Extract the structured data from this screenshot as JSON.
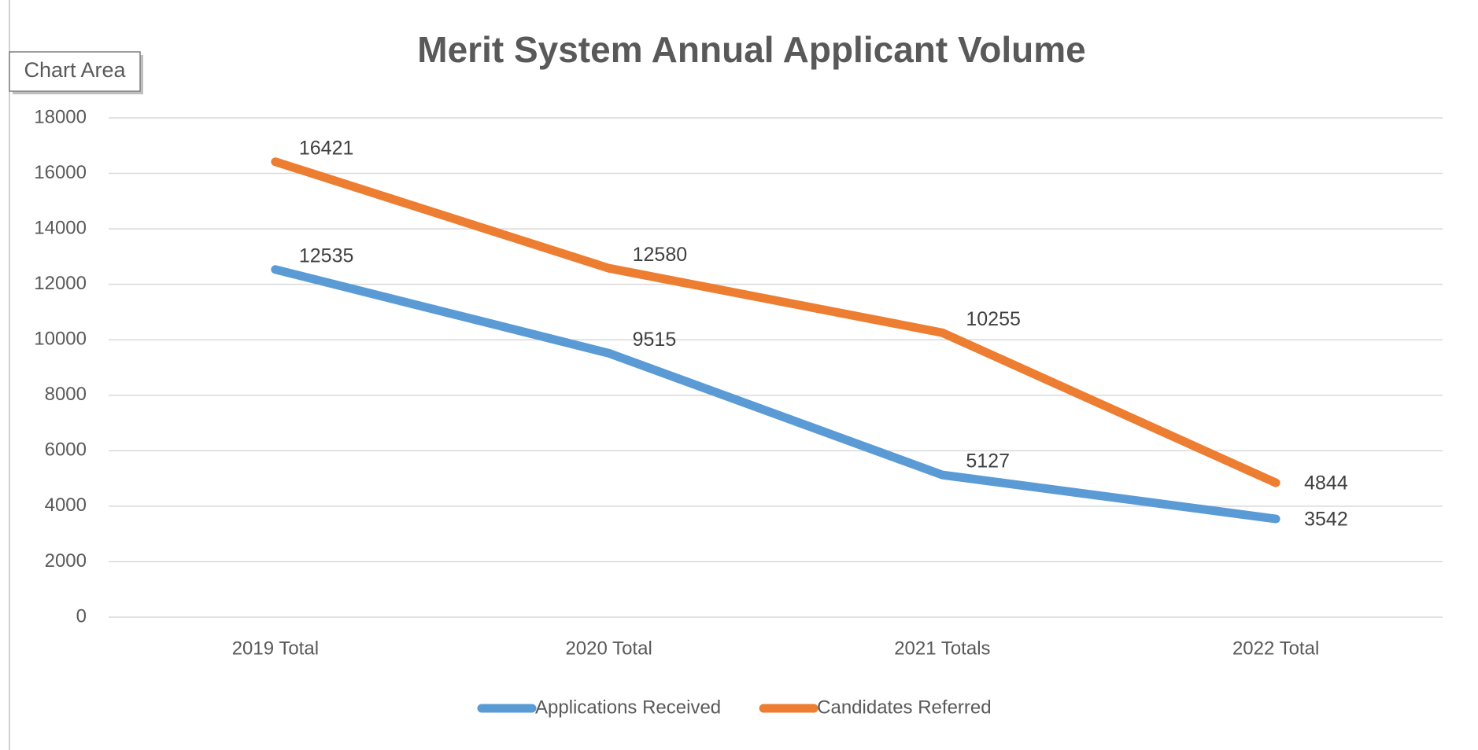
{
  "tooltip": "Chart Area",
  "chart_data": {
    "type": "line",
    "title": "Merit System Annual Applicant Volume",
    "categories": [
      "2019 Total",
      "2020 Total",
      "2021 Totals",
      "2022 Total"
    ],
    "series": [
      {
        "name": "Applications Received",
        "color": "#5b9bd5",
        "values": [
          12535,
          9515,
          5127,
          3542
        ]
      },
      {
        "name": "Candidates Referred",
        "color": "#ed7d31",
        "values": [
          16421,
          12580,
          10255,
          4844
        ]
      }
    ],
    "ylim": [
      0,
      18000
    ],
    "yticks": [
      0,
      2000,
      4000,
      6000,
      8000,
      10000,
      12000,
      14000,
      16000,
      18000
    ],
    "grid": true,
    "legend": "bottom",
    "data_labels": true
  }
}
